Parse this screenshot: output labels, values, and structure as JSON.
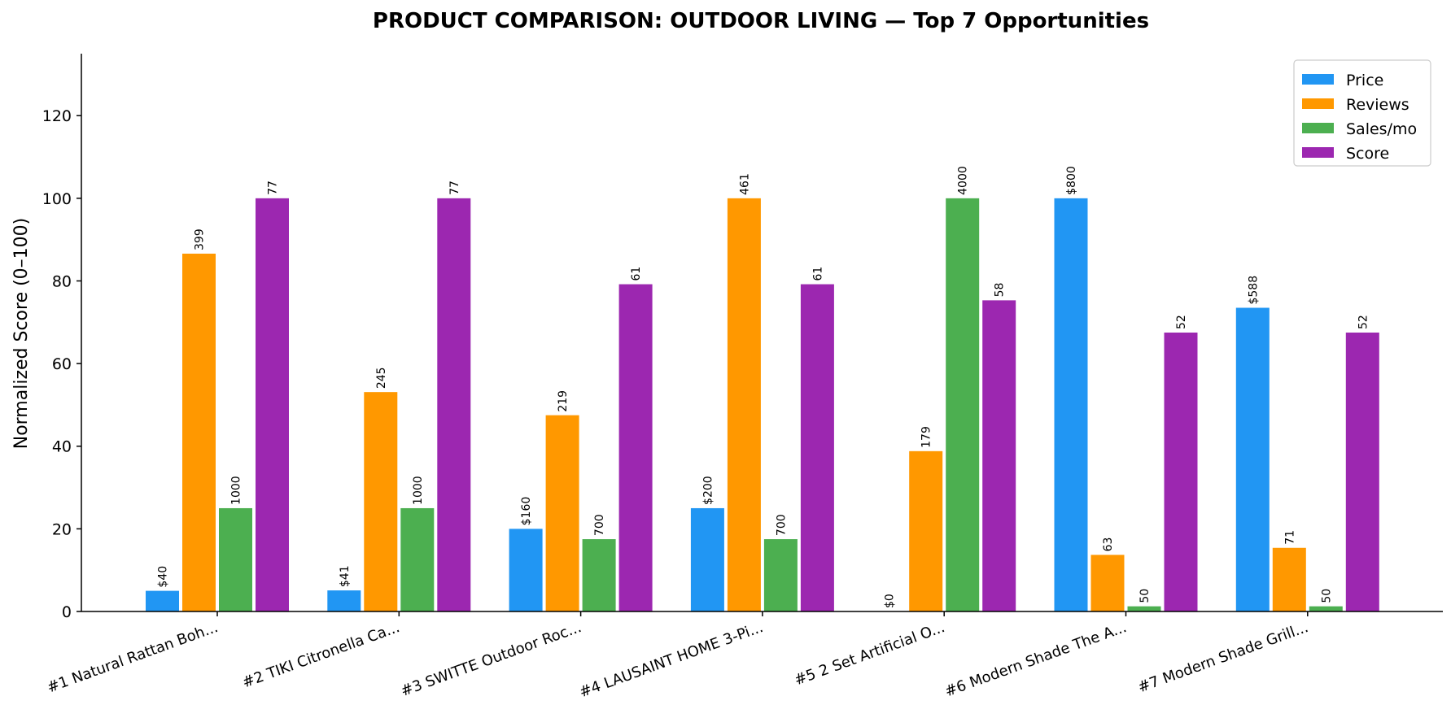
{
  "chart_data": {
    "type": "bar",
    "title": "PRODUCT COMPARISON: OUTDOOR LIVING — Top 7 Opportunities",
    "xlabel": "",
    "ylabel": "Normalized Score (0–100)",
    "ylim": [
      0,
      135
    ],
    "yticks": [
      0,
      20,
      40,
      60,
      80,
      100,
      120
    ],
    "grid": false,
    "legend_position": "top-right",
    "categories": [
      "#1 Natural Rattan Boh...",
      "#2 TIKI Citronella Ca...",
      "#3 SWITTE Outdoor Roc...",
      "#4 LAUSAINT HOME 3-Pi...",
      "#5 2 Set Artificial O...",
      "#6 Modern Shade The A...",
      "#7 Modern Shade Grill..."
    ],
    "series": [
      {
        "name": "Price",
        "color": "#2196F3",
        "values": [
          5,
          5.1,
          20,
          25,
          0,
          100,
          73.5
        ],
        "labels": [
          "$40",
          "$41",
          "$160",
          "$200",
          "$0",
          "$800",
          "$588"
        ]
      },
      {
        "name": "Reviews",
        "color": "#FF9800",
        "values": [
          86.6,
          53.1,
          47.5,
          100,
          38.8,
          13.7,
          15.4
        ],
        "labels": [
          "399",
          "245",
          "219",
          "461",
          "179",
          "63",
          "71"
        ]
      },
      {
        "name": "Sales/mo",
        "color": "#4CAF50",
        "values": [
          25,
          25,
          17.5,
          17.5,
          100,
          1.25,
          1.25
        ],
        "labels": [
          "1000",
          "1000",
          "700",
          "700",
          "4000",
          "50",
          "50"
        ]
      },
      {
        "name": "Score",
        "color": "#9C27B0",
        "values": [
          100,
          100,
          79.2,
          79.2,
          75.3,
          67.5,
          67.5
        ],
        "labels": [
          "77",
          "77",
          "61",
          "61",
          "58",
          "52",
          "52"
        ]
      }
    ]
  }
}
